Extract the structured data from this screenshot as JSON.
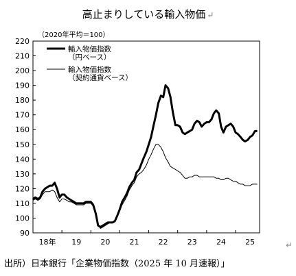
{
  "title": "高止まりしている輸入物価",
  "paragraph_mark": "↵",
  "source": "出所）日本銀行「企業物価指数（2025 年 10 月速報）」",
  "chart_data": {
    "type": "line",
    "unit_label": "（2020年平均＝100）",
    "ylim": [
      90,
      220
    ],
    "yticks": [
      90,
      100,
      110,
      120,
      130,
      140,
      150,
      160,
      170,
      180,
      190,
      200,
      210,
      220
    ],
    "xlim": [
      2018.0,
      2025.83
    ],
    "xticks": [
      {
        "label": "18年",
        "at": 2018.5
      },
      {
        "label": "19",
        "at": 2019.5
      },
      {
        "label": "20",
        "at": 2020.5
      },
      {
        "label": "21",
        "at": 2021.5
      },
      {
        "label": "22",
        "at": 2022.5
      },
      {
        "label": "23",
        "at": 2023.5
      },
      {
        "label": "24",
        "at": 2024.5
      },
      {
        "label": "25",
        "at": 2025.5
      }
    ],
    "grid": false,
    "legend_position": "top-left",
    "series": [
      {
        "name": "輸入物価指数（円ベース）",
        "legend_lines": [
          "輸入物価指数",
          "（円ベース）"
        ],
        "color": "#000000",
        "style": "thick",
        "x": [
          2018.0,
          2018.08,
          2018.17,
          2018.25,
          2018.33,
          2018.42,
          2018.5,
          2018.58,
          2018.67,
          2018.75,
          2018.83,
          2018.92,
          2019.0,
          2019.08,
          2019.17,
          2019.25,
          2019.33,
          2019.42,
          2019.5,
          2019.58,
          2019.67,
          2019.75,
          2019.83,
          2019.92,
          2020.0,
          2020.08,
          2020.17,
          2020.25,
          2020.33,
          2020.42,
          2020.5,
          2020.58,
          2020.67,
          2020.75,
          2020.83,
          2020.92,
          2021.0,
          2021.08,
          2021.17,
          2021.25,
          2021.33,
          2021.42,
          2021.5,
          2021.58,
          2021.67,
          2021.75,
          2021.83,
          2021.92,
          2022.0,
          2022.08,
          2022.17,
          2022.25,
          2022.33,
          2022.42,
          2022.5,
          2022.58,
          2022.67,
          2022.75,
          2022.83,
          2022.92,
          2023.0,
          2023.08,
          2023.17,
          2023.25,
          2023.33,
          2023.42,
          2023.5,
          2023.58,
          2023.67,
          2023.75,
          2023.83,
          2023.92,
          2024.0,
          2024.08,
          2024.17,
          2024.25,
          2024.33,
          2024.42,
          2024.5,
          2024.58,
          2024.67,
          2024.75,
          2024.83,
          2024.92,
          2025.0,
          2025.08,
          2025.17,
          2025.25,
          2025.33,
          2025.42,
          2025.5,
          2025.58,
          2025.67,
          2025.75
        ],
        "values": [
          113,
          114,
          113,
          114,
          118,
          120,
          121,
          122,
          122,
          124,
          120,
          114,
          116,
          116,
          114,
          113,
          112,
          111,
          110,
          110,
          110,
          110,
          111,
          111,
          111,
          109,
          103,
          95,
          94,
          95,
          96,
          97,
          97,
          97,
          98,
          102,
          106,
          111,
          114,
          117,
          121,
          124,
          126,
          131,
          133,
          137,
          141,
          145,
          150,
          155,
          163,
          170,
          178,
          183,
          182,
          190,
          188,
          182,
          172,
          163,
          163,
          162,
          158,
          157,
          158,
          159,
          160,
          164,
          166,
          165,
          162,
          164,
          165,
          165,
          167,
          171,
          173,
          171,
          162,
          158,
          162,
          163,
          164,
          162,
          158,
          157,
          155,
          153,
          152,
          153,
          155,
          156,
          159,
          159
        ]
      },
      {
        "name": "輸入物価指数（契約通貨ベース）",
        "legend_lines": [
          "輸入物価指数",
          "（契約通貨ベース）"
        ],
        "color": "#000000",
        "style": "thin",
        "x": [
          2018.0,
          2018.08,
          2018.17,
          2018.25,
          2018.33,
          2018.42,
          2018.5,
          2018.58,
          2018.67,
          2018.75,
          2018.83,
          2018.92,
          2019.0,
          2019.08,
          2019.17,
          2019.25,
          2019.33,
          2019.42,
          2019.5,
          2019.58,
          2019.67,
          2019.75,
          2019.83,
          2019.92,
          2020.0,
          2020.08,
          2020.17,
          2020.25,
          2020.33,
          2020.42,
          2020.5,
          2020.58,
          2020.67,
          2020.75,
          2020.83,
          2020.92,
          2021.0,
          2021.08,
          2021.17,
          2021.25,
          2021.33,
          2021.42,
          2021.5,
          2021.58,
          2021.67,
          2021.75,
          2021.83,
          2021.92,
          2022.0,
          2022.08,
          2022.17,
          2022.25,
          2022.33,
          2022.42,
          2022.5,
          2022.58,
          2022.67,
          2022.75,
          2022.83,
          2022.92,
          2023.0,
          2023.08,
          2023.17,
          2023.25,
          2023.33,
          2023.42,
          2023.5,
          2023.58,
          2023.67,
          2023.75,
          2023.83,
          2023.92,
          2024.0,
          2024.08,
          2024.17,
          2024.25,
          2024.33,
          2024.42,
          2024.5,
          2024.58,
          2024.67,
          2024.75,
          2024.83,
          2024.92,
          2025.0,
          2025.08,
          2025.17,
          2025.25,
          2025.33,
          2025.42,
          2025.5,
          2025.58,
          2025.67,
          2025.75
        ],
        "values": [
          112,
          113,
          112,
          113,
          116,
          118,
          118,
          118,
          119,
          118,
          114,
          111,
          113,
          113,
          112,
          111,
          111,
          110,
          109,
          109,
          109,
          109,
          110,
          110,
          110,
          108,
          103,
          95,
          93,
          94,
          95,
          96,
          97,
          97,
          98,
          102,
          105,
          109,
          112,
          115,
          119,
          122,
          124,
          128,
          130,
          131,
          133,
          136,
          140,
          143,
          147,
          150,
          150,
          148,
          145,
          141,
          138,
          135,
          134,
          133,
          132,
          131,
          129,
          127,
          127,
          128,
          128,
          129,
          129,
          128,
          128,
          128,
          128,
          128,
          128,
          128,
          127,
          127,
          126,
          126,
          127,
          127,
          126,
          125,
          125,
          124,
          123,
          123,
          122,
          122,
          122,
          123,
          123,
          123
        ]
      }
    ]
  }
}
